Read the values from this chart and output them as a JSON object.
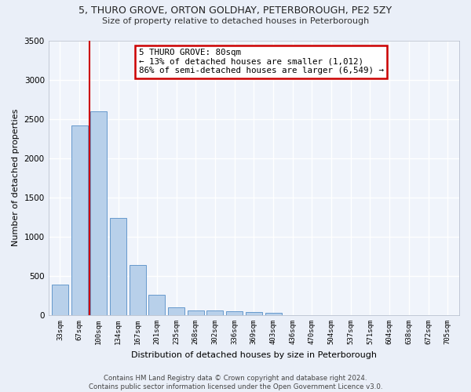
{
  "title_line1": "5, THURO GROVE, ORTON GOLDHAY, PETERBOROUGH, PE2 5ZY",
  "title_line2": "Size of property relative to detached houses in Peterborough",
  "xlabel": "Distribution of detached houses by size in Peterborough",
  "ylabel": "Number of detached properties",
  "categories": [
    "33sqm",
    "67sqm",
    "100sqm",
    "134sqm",
    "167sqm",
    "201sqm",
    "235sqm",
    "268sqm",
    "302sqm",
    "336sqm",
    "369sqm",
    "403sqm",
    "436sqm",
    "470sqm",
    "504sqm",
    "537sqm",
    "571sqm",
    "604sqm",
    "638sqm",
    "672sqm",
    "705sqm"
  ],
  "values": [
    390,
    2420,
    2600,
    1240,
    640,
    260,
    100,
    65,
    60,
    55,
    40,
    30,
    0,
    0,
    0,
    0,
    0,
    0,
    0,
    0,
    0
  ],
  "bar_color": "#b8d0ea",
  "bar_edgecolor": "#6699cc",
  "property_line_x": 1.5,
  "annotation_text": "5 THURO GROVE: 80sqm\n← 13% of detached houses are smaller (1,012)\n86% of semi-detached houses are larger (6,549) →",
  "annotation_box_color": "#ffffff",
  "annotation_box_edgecolor": "#cc0000",
  "vline_color": "#cc0000",
  "ylim": [
    0,
    3500
  ],
  "yticks": [
    0,
    500,
    1000,
    1500,
    2000,
    2500,
    3000,
    3500
  ],
  "footer": "Contains HM Land Registry data © Crown copyright and database right 2024.\nContains public sector information licensed under the Open Government Licence v3.0.",
  "bg_color": "#eaeff8",
  "plot_bg_color": "#f0f4fb"
}
